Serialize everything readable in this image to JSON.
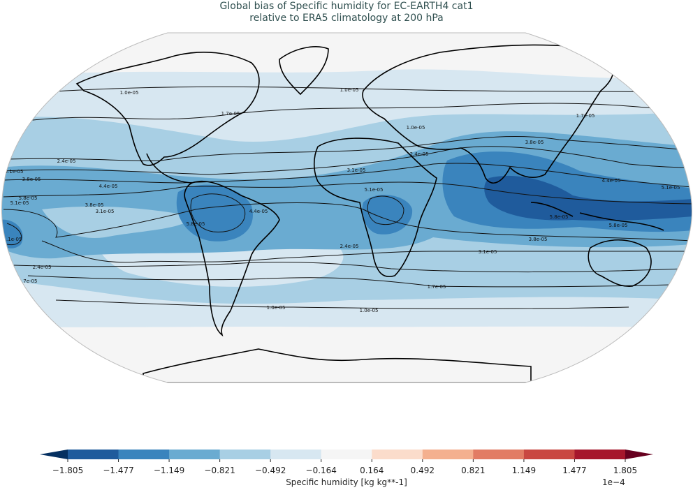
{
  "title": {
    "line1": "Global bias of Specific humidity for EC-EARTH4 cat1",
    "line2": "relative to ERA5 climatology at 200 hPa"
  },
  "map": {
    "projection": "Robinson",
    "contour_labels": [
      "1.0e-05",
      "1.0e-05",
      "1.0e-05",
      "1.7e-05",
      "1.7e-05",
      "1.7e-05",
      "2.4e-05",
      "2.4e-05",
      "2.4e-05",
      "2.4e-05",
      "3.1e-05",
      "3.1e-05",
      "3.1e-05",
      "3.1e-05",
      "3.8e-05",
      "3.8e-05",
      "3.8e-05",
      "3.8e-05",
      "4.4e-05",
      "4.4e-05",
      "4.4e-05",
      "5.1e-05",
      "5.1e-05",
      "5.1e-05",
      "5.8e-05",
      "5.8e-05",
      "5.8e-05",
      "1.0e-05",
      "1.7e-05",
      "1.0e-05",
      "1.1e-05",
      "5.8e-05"
    ]
  },
  "colorbar": {
    "label": "Specific humidity [kg kg**-1]",
    "exponent": "1e−4",
    "ticks": [
      "−1.805",
      "−1.477",
      "−1.149",
      "−0.821",
      "−0.492",
      "−0.164",
      "0.164",
      "0.492",
      "0.821",
      "1.149",
      "1.477",
      "1.805"
    ],
    "colors": [
      "#1f5b9c",
      "#3a84bd",
      "#6aabd1",
      "#a8cfe4",
      "#d7e7f1",
      "#f5f5f5",
      "#fbdccb",
      "#f4b08f",
      "#e27c64",
      "#c94741",
      "#a6162c"
    ],
    "under_color": "#053061",
    "over_color": "#67001f"
  }
}
